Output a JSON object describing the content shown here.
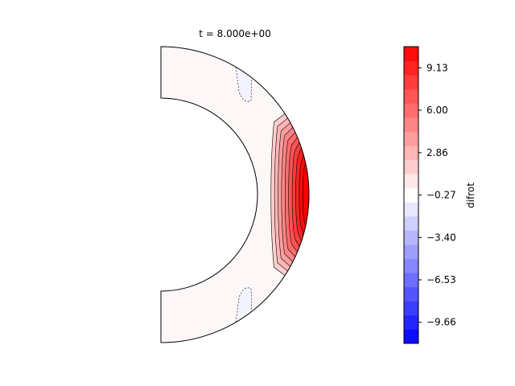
{
  "chart_data": {
    "type": "contourf",
    "title": "t = 8.000e+00",
    "geometry": "meridional half-annulus",
    "colormap": "bwr",
    "variable": "difrot",
    "colorbar": {
      "label": "difrot",
      "range": [
        -11.22,
        10.69
      ],
      "ticks": [
        9.13,
        6.0,
        2.86,
        -0.27,
        -3.4,
        -6.53,
        -9.66
      ],
      "tick_labels": [
        "9.13",
        "6.00",
        "2.86",
        "−0.27",
        "−3.40",
        "−6.53",
        "−9.66"
      ],
      "levels": 21
    },
    "field_description": {
      "background_level": 0.0,
      "equatorial_positive_band": {
        "max_level": 10.69,
        "location": "outer equator"
      },
      "negative_pockets": [
        {
          "location": "outer boundary, northern high latitude",
          "level": -0.8
        },
        {
          "location": "outer boundary, southern high latitude",
          "level": -0.8
        }
      ]
    }
  }
}
